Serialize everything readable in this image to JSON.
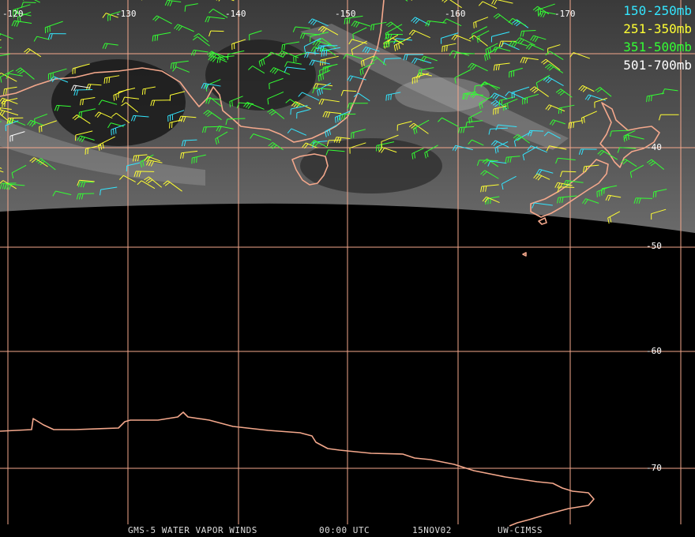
{
  "map": {
    "title": "GMS-5 WATER VAPOR WINDS",
    "time": "00:00 UTC",
    "date": "15NOV02",
    "credit": "UW-CIMSS",
    "longitude_labels": [
      "-120",
      "-130",
      "-140",
      "-150",
      "-160",
      "-170"
    ],
    "latitude_labels": [
      "-40",
      "-50",
      "-60",
      "-70"
    ],
    "legend": [
      {
        "label": "150-250mb",
        "color": "#33e6ff"
      },
      {
        "label": "251-350mb",
        "color": "#ffff33"
      },
      {
        "label": "351-500mb",
        "color": "#33ff33"
      },
      {
        "label": "501-700mb",
        "color": "#ffffff"
      }
    ],
    "grid_color": "#f4a88c",
    "coastline_color": "#f4a88c"
  }
}
